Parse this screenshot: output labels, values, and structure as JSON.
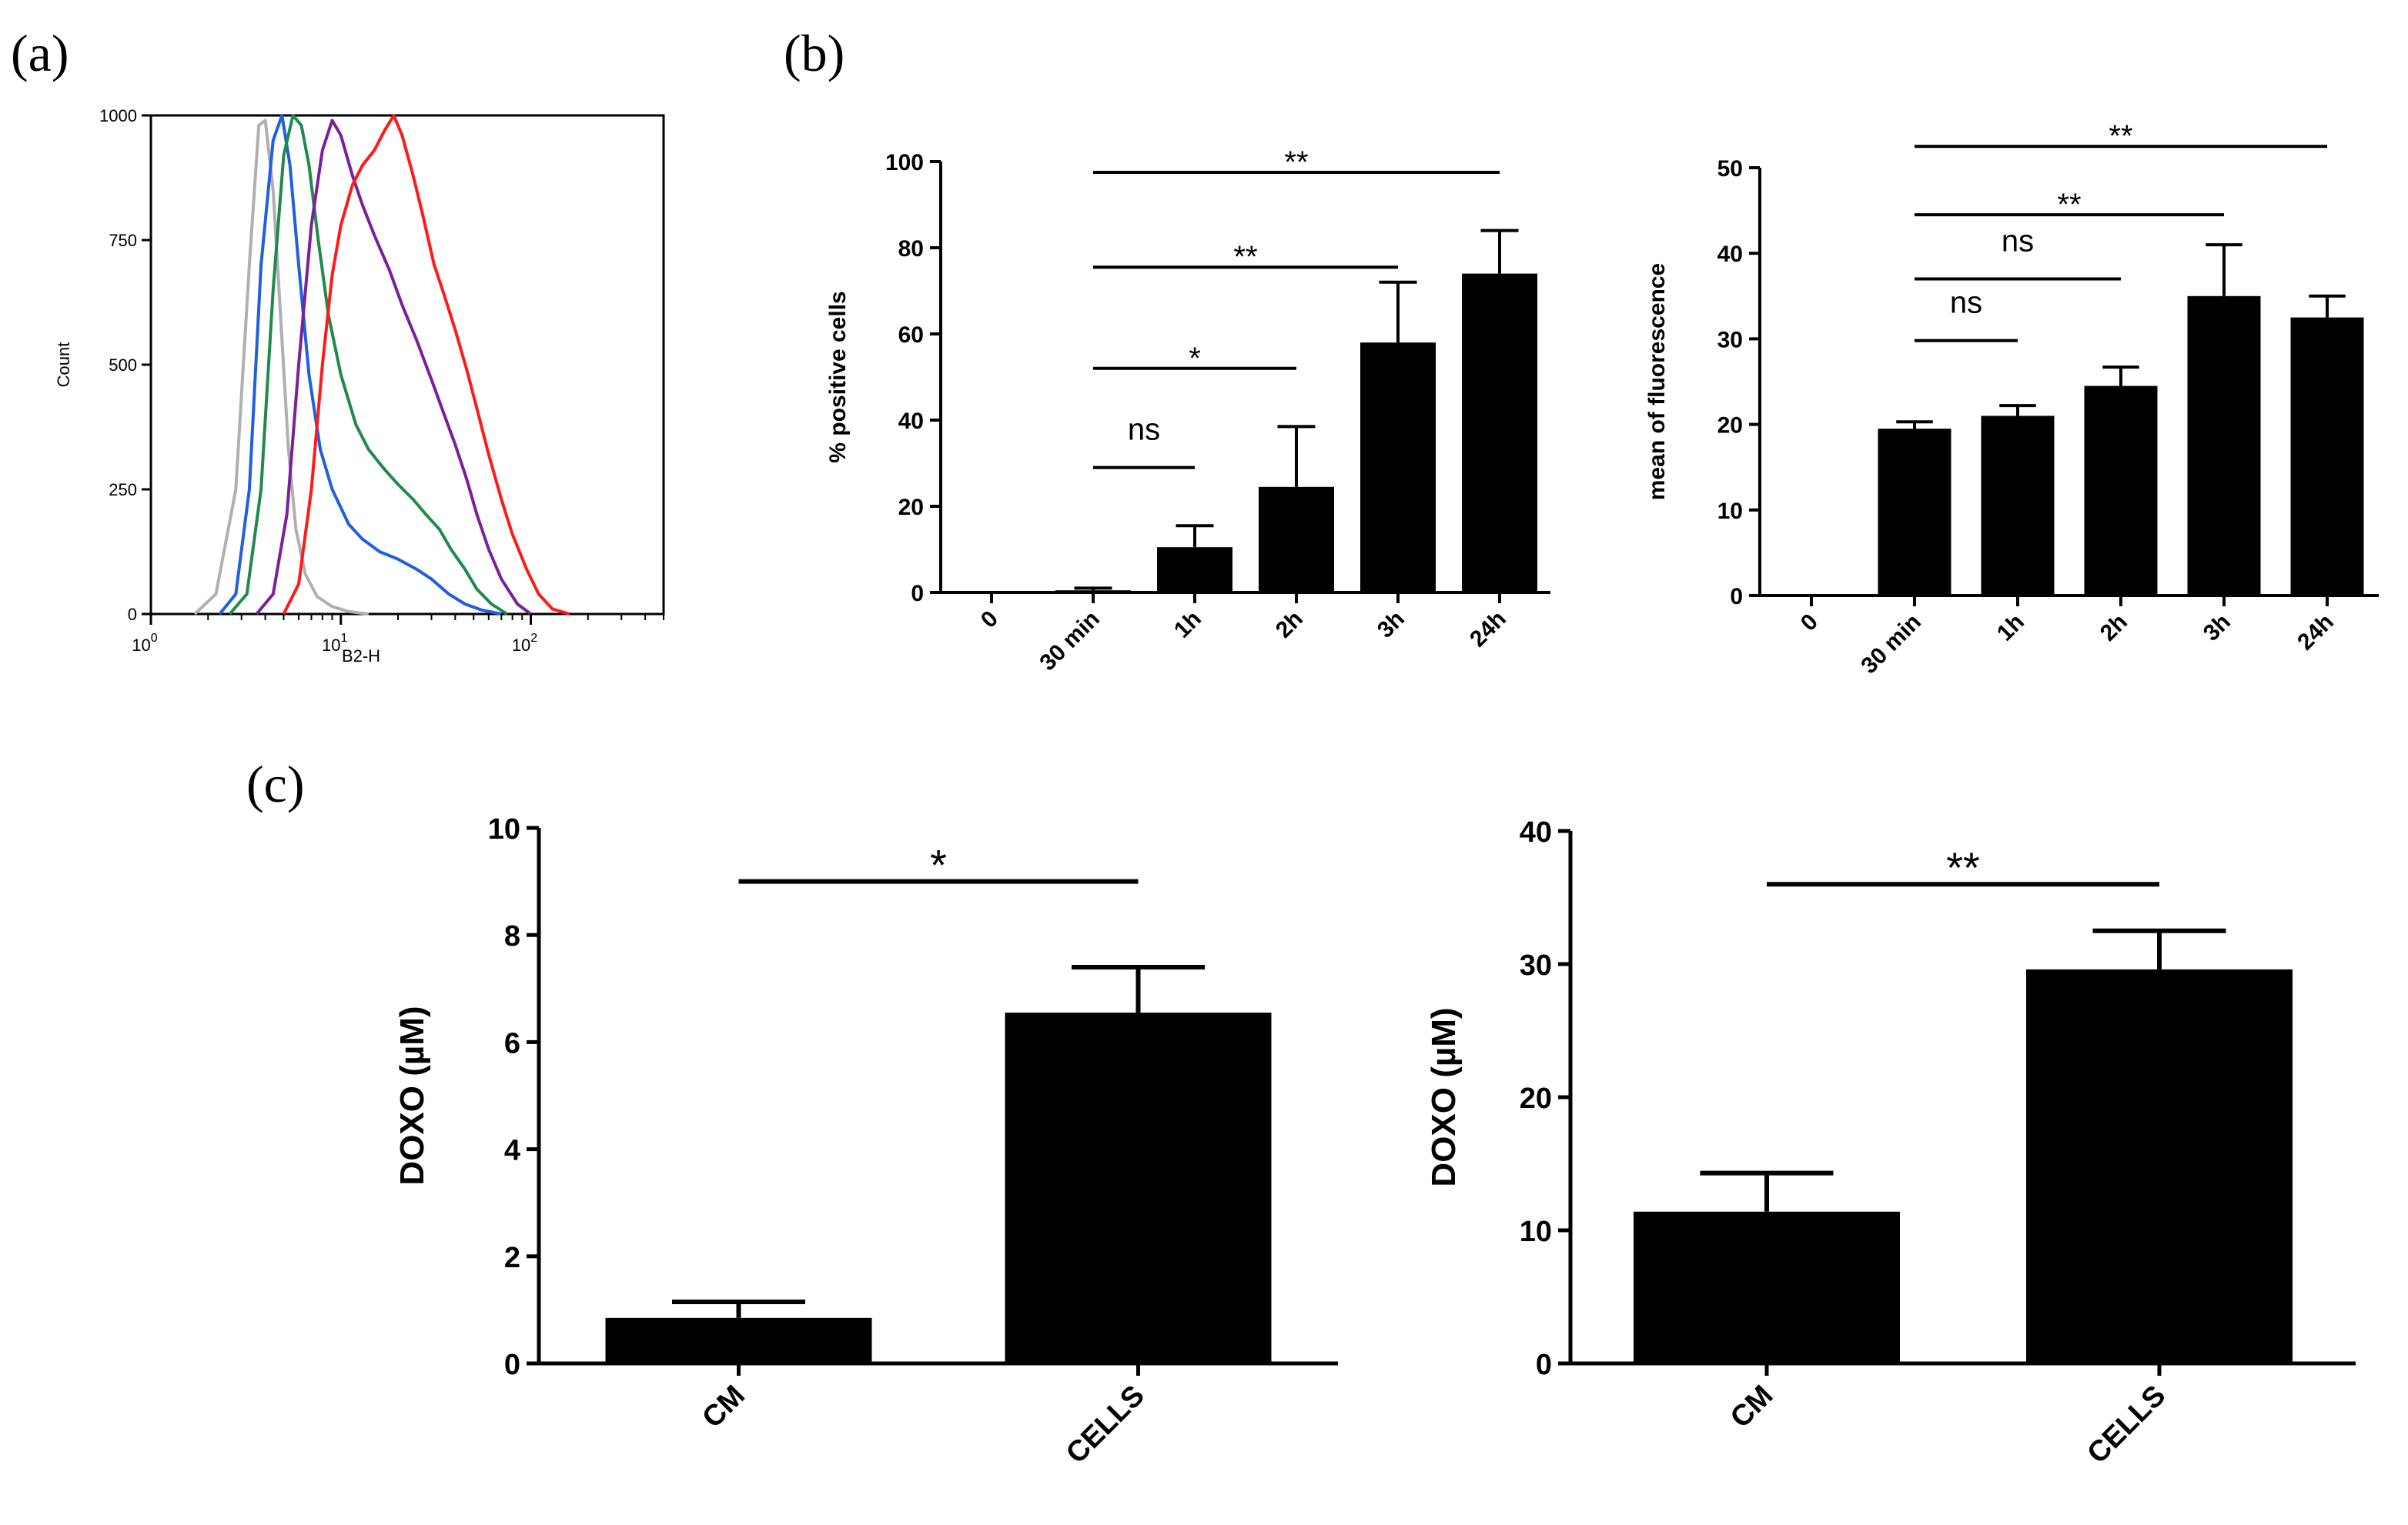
{
  "panels": {
    "a": "(a)",
    "b": "(b)",
    "c": "(c)"
  },
  "chart_data": [
    {
      "id": "a",
      "type": "line",
      "xlabel": "B2-H",
      "ylabel": "Count",
      "xscale": "log",
      "xlim": [
        1,
        500
      ],
      "ylim": [
        0,
        1000
      ],
      "xticks": [
        1,
        10,
        100
      ],
      "xtick_labels": [
        {
          "base": "10",
          "exp": "0"
        },
        {
          "base": "10",
          "exp": "1"
        },
        {
          "base": "10",
          "exp": "2"
        }
      ],
      "yticks": [
        0,
        250,
        500,
        750,
        1000
      ],
      "series": [
        {
          "color": "#b0b0b0",
          "x": [
            1.7,
            2.2,
            2.8,
            3.3,
            3.7,
            4.0,
            4.4,
            4.9,
            5.3,
            5.8,
            6.5,
            7.5,
            9,
            11,
            14
          ],
          "y": [
            0,
            40,
            250,
            700,
            980,
            990,
            850,
            550,
            330,
            170,
            80,
            35,
            15,
            5,
            0
          ]
        },
        {
          "color": "#1f5fe0",
          "x": [
            2.3,
            2.8,
            3.3,
            3.8,
            4.4,
            4.9,
            5.4,
            6.0,
            6.8,
            7.8,
            9,
            11,
            13,
            16,
            20,
            25,
            30,
            37,
            45,
            55,
            70
          ],
          "y": [
            0,
            40,
            250,
            700,
            950,
            1000,
            900,
            700,
            480,
            330,
            250,
            180,
            150,
            125,
            110,
            90,
            70,
            40,
            20,
            8,
            0
          ]
        },
        {
          "color": "#1e8a4c",
          "x": [
            2.6,
            3.2,
            3.8,
            4.4,
            5.0,
            5.6,
            6.2,
            6.8,
            7.6,
            8.6,
            10,
            12,
            14,
            17,
            20,
            24,
            28,
            33,
            38,
            45,
            52,
            62,
            75
          ],
          "y": [
            0,
            40,
            250,
            650,
            920,
            1000,
            980,
            900,
            750,
            600,
            480,
            380,
            330,
            290,
            260,
            230,
            200,
            170,
            130,
            90,
            50,
            20,
            0
          ]
        },
        {
          "color": "#7b1f9a",
          "x": [
            3.6,
            4.4,
            5.2,
            6.0,
            7.0,
            8.0,
            9.0,
            10,
            11.5,
            13,
            15,
            18,
            21,
            25,
            30,
            35,
            40,
            46,
            52,
            60,
            70,
            85,
            100
          ],
          "y": [
            0,
            40,
            200,
            500,
            780,
            930,
            990,
            960,
            880,
            820,
            760,
            690,
            620,
            550,
            470,
            400,
            340,
            270,
            200,
            130,
            70,
            20,
            0
          ]
        },
        {
          "color": "#ff1a1a",
          "x": [
            5.0,
            6.0,
            7.0,
            8.0,
            9.0,
            10,
            11.5,
            13,
            15,
            17,
            19,
            21,
            24,
            27,
            31,
            35,
            40,
            46,
            53,
            60,
            70,
            80,
            95,
            110,
            130,
            160
          ],
          "y": [
            0,
            60,
            250,
            500,
            680,
            780,
            860,
            900,
            930,
            970,
            1000,
            960,
            880,
            800,
            700,
            640,
            570,
            490,
            400,
            320,
            230,
            160,
            90,
            40,
            10,
            0
          ]
        }
      ]
    },
    {
      "id": "b1",
      "type": "bar",
      "categories": [
        "0",
        "30 min",
        "1h",
        "2h",
        "3h",
        "24h"
      ],
      "values": [
        0,
        0.5,
        10.5,
        24.5,
        58,
        74
      ],
      "errors": [
        0,
        0.5,
        5,
        14,
        14,
        10
      ],
      "ylabel": "% positive cells",
      "ylim": [
        0,
        100
      ],
      "yticks": [
        0,
        20,
        40,
        60,
        80,
        100
      ],
      "comparisons": [
        {
          "from": 1,
          "to": 2,
          "label": "ns",
          "level": 29
        },
        {
          "from": 1,
          "to": 3,
          "label": "*",
          "level": 52
        },
        {
          "from": 1,
          "to": 4,
          "label": "**",
          "level": 75.5
        },
        {
          "from": 1,
          "to": 5,
          "label": "**",
          "level": 97.5
        }
      ]
    },
    {
      "id": "b2",
      "type": "bar",
      "categories": [
        "0",
        "30 min",
        "1h",
        "2h",
        "3h",
        "24h"
      ],
      "values": [
        0,
        19.5,
        21,
        24.5,
        35,
        32.5
      ],
      "errors": [
        0,
        0.8,
        1.2,
        2.2,
        6,
        2.5
      ],
      "ylabel": "mean of fluorescence",
      "ylim": [
        0,
        50
      ],
      "yticks": [
        0,
        10,
        20,
        30,
        40,
        50
      ],
      "comparisons": [
        {
          "from": 1,
          "to": 2,
          "label": "ns",
          "level": 29.8
        },
        {
          "from": 1,
          "to": 3,
          "label": "ns",
          "level": 37
        },
        {
          "from": 1,
          "to": 4,
          "label": "**",
          "level": 44.5
        },
        {
          "from": 1,
          "to": 5,
          "label": "**",
          "level": 52.5
        }
      ]
    },
    {
      "id": "c1",
      "type": "bar",
      "categories": [
        "CM",
        "CELLS"
      ],
      "values": [
        0.85,
        6.55
      ],
      "errors": [
        0.3,
        0.85
      ],
      "ylabel": "DOXO (µM)",
      "ylim": [
        0,
        10
      ],
      "yticks": [
        0,
        2,
        4,
        6,
        8,
        10
      ],
      "comparisons": [
        {
          "from": 0,
          "to": 1,
          "label": "*",
          "level": 9.0
        }
      ]
    },
    {
      "id": "c2",
      "type": "bar",
      "categories": [
        "CM",
        "CELLS"
      ],
      "values": [
        11.4,
        29.6
      ],
      "errors": [
        2.9,
        2.9
      ],
      "ylabel": "DOXO (µM)",
      "ylim": [
        0,
        40
      ],
      "yticks": [
        0,
        10,
        20,
        30,
        40
      ],
      "comparisons": [
        {
          "from": 0,
          "to": 1,
          "label": "**",
          "level": 36
        }
      ]
    }
  ]
}
